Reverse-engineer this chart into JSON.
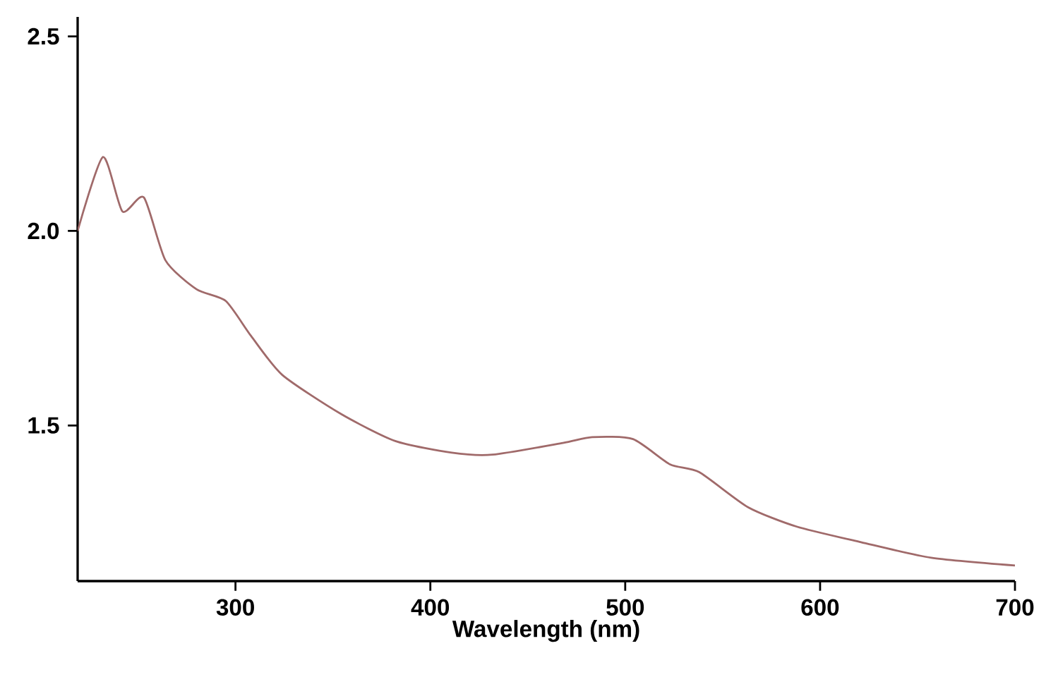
{
  "chart_data": {
    "type": "line",
    "xlabel": "Wavelength (nm)",
    "x": [
      219,
      232,
      242,
      253,
      264,
      280,
      295,
      308,
      324,
      354,
      382,
      411,
      432,
      468,
      483,
      504,
      523,
      538,
      563,
      588,
      621,
      657,
      700
    ],
    "values": [
      2.0,
      2.19,
      2.05,
      2.086,
      1.925,
      1.85,
      1.82,
      1.73,
      1.63,
      1.53,
      1.46,
      1.43,
      1.425,
      1.455,
      1.47,
      1.465,
      1.4,
      1.38,
      1.29,
      1.24,
      1.2,
      1.16,
      1.14
    ],
    "color": "#a06a6a",
    "xlim": [
      219,
      700
    ],
    "ylim": [
      1.1,
      2.55
    ],
    "xticks": [
      300,
      400,
      500,
      600,
      700
    ],
    "yticks": [
      {
        "value": 1.5,
        "label": "1.5"
      },
      {
        "value": 2.0,
        "label": "2.0"
      },
      {
        "value": 2.5,
        "label": "2.5"
      }
    ],
    "grid": false,
    "marker": "none",
    "line_style": "solid"
  }
}
